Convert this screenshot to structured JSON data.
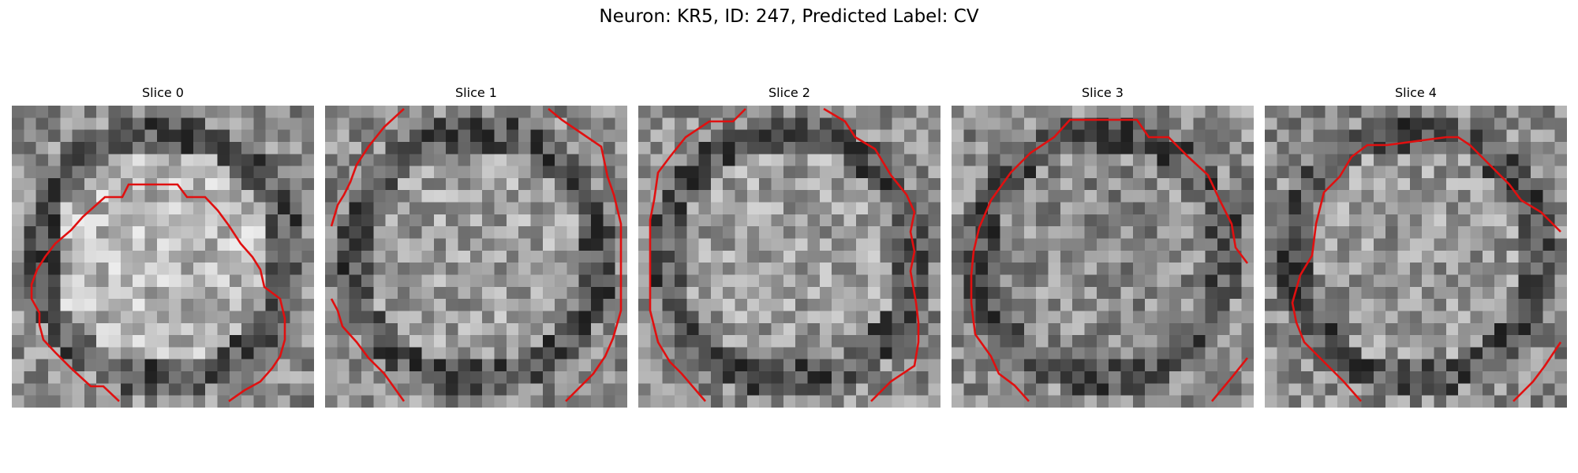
{
  "figure": {
    "title": "Neuron: KR5, ID: 247, Predicted Label: CV"
  },
  "slices": [
    {
      "label": "Slice 0",
      "seed": 11,
      "center_brightness": 0.72,
      "contour_color": "#e01010"
    },
    {
      "label": "Slice 1",
      "seed": 23,
      "center_brightness": 0.62,
      "contour_color": "#e01010"
    },
    {
      "label": "Slice 2",
      "seed": 37,
      "center_brightness": 0.62,
      "contour_color": "#e01010"
    },
    {
      "label": "Slice 3",
      "seed": 51,
      "center_brightness": 0.55,
      "contour_color": "#e01010"
    },
    {
      "label": "Slice 4",
      "seed": 67,
      "center_brightness": 0.6,
      "contour_color": "#e01010"
    }
  ]
}
